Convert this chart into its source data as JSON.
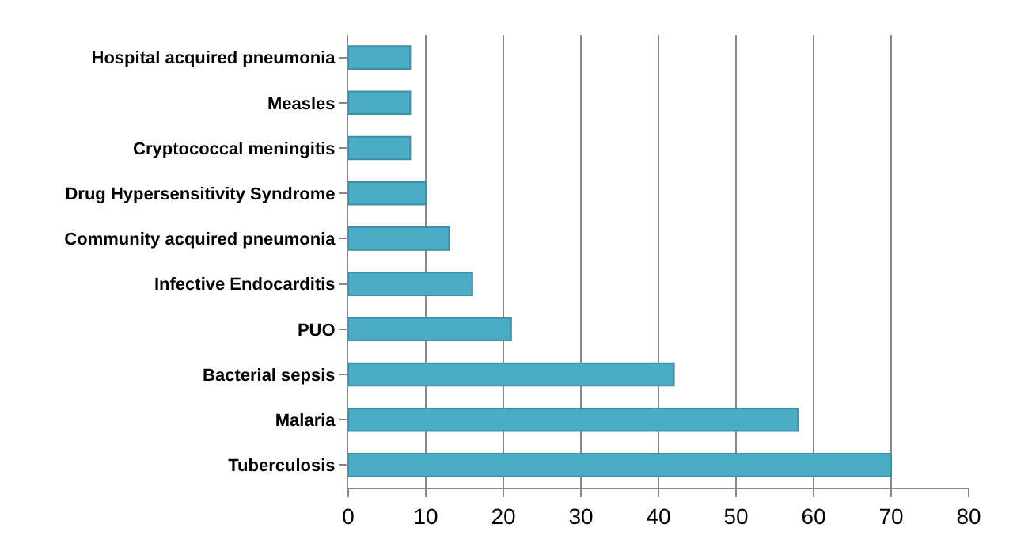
{
  "chart_data": {
    "type": "bar",
    "orientation": "horizontal",
    "categories": [
      "Hospital acquired pneumonia",
      "Measles",
      "Cryptococcal meningitis",
      "Drug Hypersensitivity Syndrome",
      "Community acquired pneumonia",
      "Infective Endocarditis",
      "PUO",
      "Bacterial sepsis",
      "Malaria",
      "Tuberculosis"
    ],
    "values": [
      8,
      8,
      8,
      10,
      13,
      16,
      21,
      42,
      58,
      70
    ],
    "color": "#4bacc6",
    "xlim": [
      0,
      80
    ],
    "xticks": [
      0,
      10,
      20,
      30,
      40,
      50,
      60,
      70,
      80
    ],
    "grid": "x"
  }
}
